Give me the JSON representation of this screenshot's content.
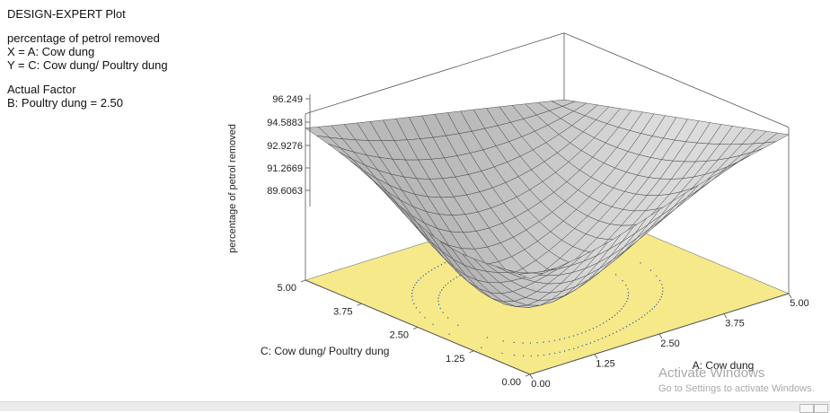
{
  "header": {
    "app_title": "DESIGN-EXPERT Plot",
    "response": "percentage of petrol removed",
    "x_line": "X = A: Cow dung",
    "y_line": "Y = C: Cow dung/ Poultry dung",
    "factor_title": "Actual Factor",
    "factor_value": "B: Poultry dung = 2.50"
  },
  "chart_data": {
    "type": "surface",
    "title": "",
    "zlabel": "percentage of petrol removed",
    "xlabel": "A: Cow dung",
    "ylabel": "C: Cow dung/ Poultry dung",
    "x_ticks": [
      "0.00",
      "1.25",
      "2.50",
      "3.75",
      "5.00"
    ],
    "y_ticks": [
      "0.00",
      "1.25",
      "2.50",
      "3.75",
      "5.00"
    ],
    "z_ticks": [
      "89.6063",
      "91.2669",
      "92.9276",
      "94.5883",
      "96.249"
    ],
    "xlim": [
      0,
      5
    ],
    "ylim": [
      0,
      5
    ],
    "zlim": [
      89.6063,
      96.249
    ],
    "corner_values": {
      "x0_y0": 93.2,
      "x5_y0": 95.9,
      "x0_y5": 95.6,
      "x5_y5": 93.1
    },
    "minimum_approx": {
      "x": 1.25,
      "y": 1.9,
      "z": 89.0
    },
    "surface_color": "#c8c8c8",
    "floor_color": "#f6e98a",
    "contour_color": "#3a5fa8"
  },
  "watermark": {
    "line1": "Activate Windows",
    "line2": "Go to Settings to activate Windows."
  }
}
